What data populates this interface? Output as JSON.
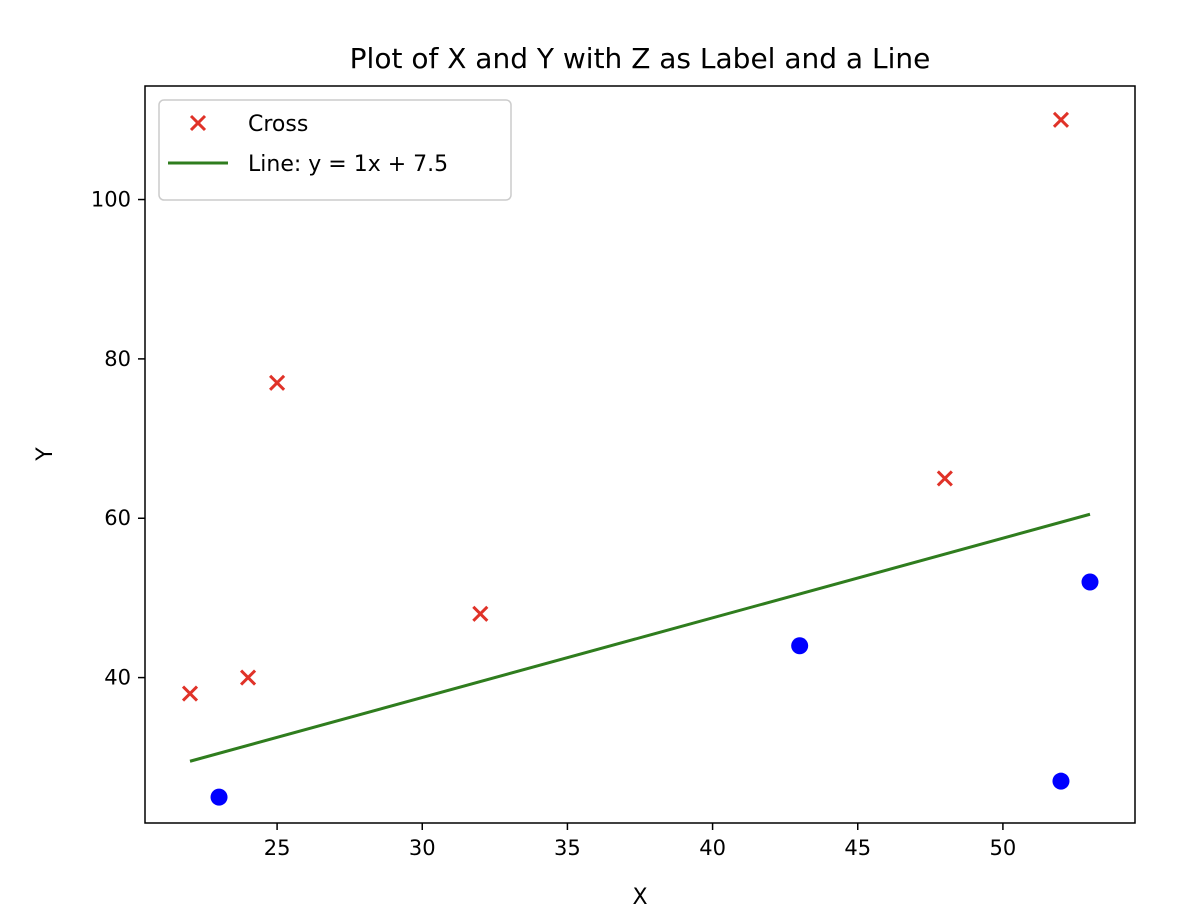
{
  "chart_data": {
    "type": "scatter",
    "title": "Plot of X and Y with Z as Label and a Line",
    "xlabel": "X",
    "ylabel": "Y",
    "xlim": [
      20.45,
      54.55
    ],
    "ylim": [
      21.75,
      114.25
    ],
    "xticks": [
      25,
      30,
      35,
      40,
      45,
      50
    ],
    "yticks": [
      40,
      60,
      80,
      100
    ],
    "grid": false,
    "legend_placement": "upper-left",
    "series": [
      {
        "name": "Cross",
        "marker": "x",
        "color": "#e03228",
        "points": [
          {
            "x": 22,
            "y": 38
          },
          {
            "x": 24,
            "y": 40
          },
          {
            "x": 25,
            "y": 77
          },
          {
            "x": 32,
            "y": 48
          },
          {
            "x": 48,
            "y": 65
          },
          {
            "x": 52,
            "y": 110
          }
        ]
      },
      {
        "marker": "o",
        "color": "#0000ff",
        "points": [
          {
            "x": 23,
            "y": 25
          },
          {
            "x": 43,
            "y": 44
          },
          {
            "x": 52,
            "y": 27
          },
          {
            "x": 53,
            "y": 52
          }
        ]
      },
      {
        "name": "Line: y = 1x + 7.5",
        "marker": "line",
        "color": "#2f7d1e",
        "points": [
          {
            "x": 22,
            "y": 29.5
          },
          {
            "x": 53,
            "y": 60.5
          }
        ]
      }
    ]
  }
}
